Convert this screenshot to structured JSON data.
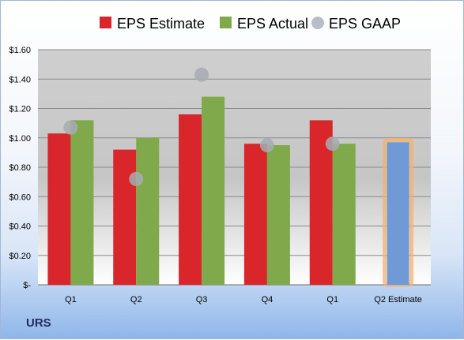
{
  "ticker": "URS",
  "legend": [
    {
      "label": "EPS Estimate",
      "color": "#d8262b",
      "shape": "square"
    },
    {
      "label": "EPS Actual",
      "color": "#7fa94a",
      "shape": "square"
    },
    {
      "label": "EPS GAAP",
      "color": "#b9bec6",
      "shape": "circle"
    }
  ],
  "chart_data": {
    "type": "bar",
    "categories": [
      "Q1",
      "Q2",
      "Q3",
      "Q4",
      "Q1",
      "Q2 Estimate"
    ],
    "ylim": [
      0,
      1.6
    ],
    "ytick_values": [
      0,
      0.2,
      0.4,
      0.6,
      0.8,
      1.0,
      1.2,
      1.4,
      1.6
    ],
    "ytick_labels": [
      "$-",
      "$0.20",
      "$0.40",
      "$0.60",
      "$0.80",
      "$1.00",
      "$1.20",
      "$1.40",
      "$1.60"
    ],
    "grid": true,
    "legend_position": "top",
    "series": [
      {
        "name": "EPS Estimate",
        "color": "#d8262b",
        "values": [
          1.03,
          0.92,
          1.16,
          0.96,
          1.12,
          null
        ]
      },
      {
        "name": "EPS Actual",
        "color": "#7fa94a",
        "values": [
          1.12,
          1.0,
          1.28,
          0.95,
          0.96,
          null
        ]
      },
      {
        "name": "EPS GAAP",
        "color": "#b9bec6",
        "type": "scatter",
        "values": [
          1.07,
          0.72,
          1.43,
          0.95,
          0.96,
          null
        ]
      }
    ],
    "estimate_bar": {
      "category": "Q2 Estimate",
      "value": 0.97,
      "color": "#6f9ad6",
      "highlight": "#f4b26b"
    }
  }
}
